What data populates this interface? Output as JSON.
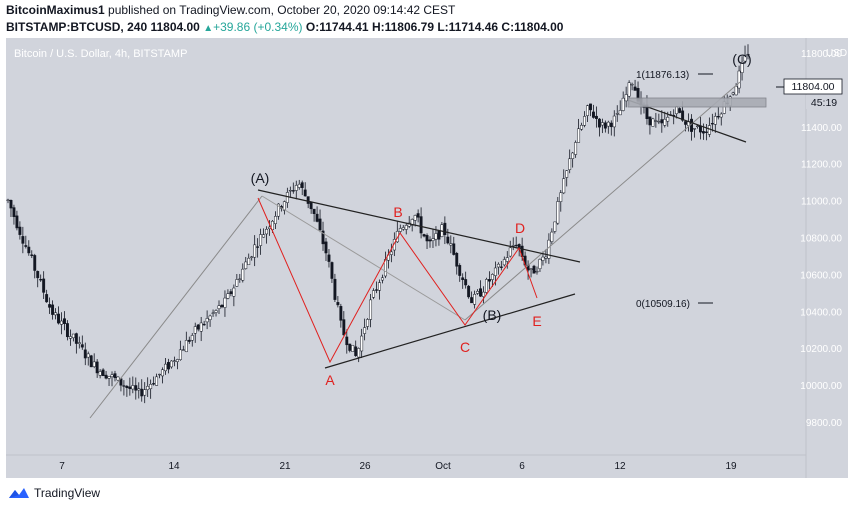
{
  "header": {
    "author": "BitcoinMaximus1",
    "published_text": "published on TradingView.com, October 20, 2020 09:14:42 CEST",
    "symbol": "BITSTAMP:BTCUSD, 240",
    "last": "11804.00",
    "change": "+39.86 (+0.34%)",
    "o_label": "O:",
    "o_val": "11744.41",
    "h_label": "H:",
    "h_val": "11806.79",
    "l_label": "L:",
    "l_val": "11714.46",
    "c_label": "C:",
    "c_val": "11804.00"
  },
  "chart_title": "Bitcoin / U.S. Dollar, 4h, BITSTAMP",
  "currency": "USD",
  "price_badge": "11804.00",
  "countdown": "45:19",
  "fib": {
    "top": "1(11876.13)",
    "bottom": "0(10509.16)"
  },
  "brand": "TradingView",
  "colors": {
    "panel": "#d1d4dc",
    "candle": "#131722",
    "red": "#e0211f",
    "wave_line": "#555555",
    "thin_line": "#888888"
  },
  "chart_data": {
    "type": "candlestick",
    "title": "Bitcoin / U.S. Dollar, 4h, BITSTAMP",
    "y_ticks": [
      9800,
      10000,
      10200,
      10400,
      10600,
      10800,
      11000,
      11200,
      11400,
      11600,
      11800
    ],
    "y_tick_labels": [
      "9800.00",
      "10000.00",
      "10200.00",
      "10400.00",
      "10600.00",
      "10800.00",
      "11000.00",
      "11200.00",
      "11400.00",
      "11600.00",
      "11800.00"
    ],
    "x_labels": [
      "7",
      "14",
      "21",
      "26",
      "Oct",
      "6",
      "12",
      "19"
    ],
    "last_price": 11804,
    "series_path": [
      [
        0,
        11000
      ],
      [
        3,
        10400
      ],
      [
        6,
        10100
      ],
      [
        9,
        9950
      ],
      [
        11,
        10100
      ],
      [
        13,
        10300
      ],
      [
        15,
        10450
      ],
      [
        17,
        10750
      ],
      [
        19,
        11000
      ],
      [
        20,
        11100
      ],
      [
        21,
        10950
      ],
      [
        22,
        10700
      ],
      [
        23,
        10300
      ],
      [
        24,
        10150
      ],
      [
        25,
        10450
      ],
      [
        26,
        10650
      ],
      [
        27,
        10850
      ],
      [
        28,
        10930
      ],
      [
        29,
        10750
      ],
      [
        30,
        10850
      ],
      [
        31,
        10650
      ],
      [
        32,
        10450
      ],
      [
        33,
        10550
      ],
      [
        34,
        10650
      ],
      [
        35,
        10780
      ],
      [
        36,
        10600
      ],
      [
        37,
        10700
      ],
      [
        38,
        11000
      ],
      [
        39,
        11300
      ],
      [
        40,
        11500
      ],
      [
        41,
        11400
      ],
      [
        42,
        11450
      ],
      [
        43,
        11650
      ],
      [
        44,
        11450
      ],
      [
        45,
        11400
      ],
      [
        46,
        11500
      ],
      [
        47,
        11400
      ],
      [
        48,
        11380
      ],
      [
        49,
        11480
      ],
      [
        50,
        11600
      ],
      [
        51,
        11810
      ]
    ],
    "waves": [
      {
        "label": "(A)",
        "x": 20,
        "y": 11150
      },
      {
        "label": "A",
        "x": 24.2,
        "y": 10150
      },
      {
        "label": "B",
        "x": 29,
        "y": 10930
      },
      {
        "label": "C",
        "x": 32.3,
        "y": 10380
      },
      {
        "label": "D",
        "x": 36,
        "y": 10830
      },
      {
        "label": "E",
        "x": 37.7,
        "y": 10550
      },
      {
        "label": "(B)",
        "x": 33.5,
        "y": 10450
      },
      {
        "label": "(C)",
        "x": 51,
        "y": 11880
      }
    ],
    "fib_levels": [
      {
        "label": "1(11876.13)",
        "value": 11876.13
      },
      {
        "label": "0(10509.16)",
        "value": 10509.16
      }
    ]
  }
}
